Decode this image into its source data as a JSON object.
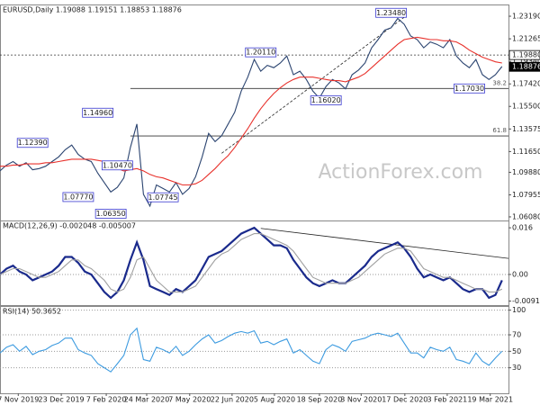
{
  "chart_data": [
    {
      "type": "line",
      "title": "EURUSD,Daily 1.19088 1.19151 1.18853 1.18876",
      "watermark": "ActionForex.com",
      "x": [
        0,
        1,
        2,
        3,
        4,
        5,
        6,
        7,
        8,
        9,
        10,
        11,
        12,
        13,
        14,
        15,
        16,
        17,
        18,
        19,
        20,
        21,
        22,
        23,
        24,
        25,
        26,
        27,
        28,
        29,
        30,
        31,
        32,
        33,
        34,
        35,
        36,
        37,
        38,
        39,
        40,
        41,
        42,
        43,
        44,
        45,
        46,
        47,
        48,
        49,
        50,
        51,
        52,
        53,
        54,
        55,
        56,
        57,
        58,
        59,
        60,
        61,
        62,
        63,
        64,
        65,
        66,
        67,
        68,
        69,
        70,
        71,
        72,
        73,
        74,
        75,
        76,
        77
      ],
      "xlim": [
        0,
        78
      ],
      "xticks": [
        {
          "value": 2.8,
          "label": "7 Nov 2019"
        },
        {
          "value": 9.4,
          "label": "23 Dec 2019"
        },
        {
          "value": 16.3,
          "label": "7 Feb 2020"
        },
        {
          "value": 22.5,
          "label": "24 Mar 2020"
        },
        {
          "value": 29.1,
          "label": "7 May 2020"
        },
        {
          "value": 35.6,
          "label": "22 Jun 2020"
        },
        {
          "value": 42.1,
          "label": "5 Aug 2020"
        },
        {
          "value": 49,
          "label": "18 Sep 2020"
        },
        {
          "value": 55.4,
          "label": "3 Nov 2020"
        },
        {
          "value": 62.1,
          "label": "17 Dec 2020"
        },
        {
          "value": 68.6,
          "label": "3 Feb 2021"
        },
        {
          "value": 75.2,
          "label": "19 Mar 2021"
        }
      ],
      "ylim": [
        1.0577,
        1.2419
      ],
      "yticks": [
        {
          "value": 1.2319,
          "label": "1.23190"
        },
        {
          "value": 1.21265,
          "label": "1.21265"
        },
        {
          "value": 1.1934,
          "label": "1.19340"
        },
        {
          "value": 1.1742,
          "label": "1.17420"
        },
        {
          "value": 1.155,
          "label": "1.15500"
        },
        {
          "value": 1.13575,
          "label": "1.13575"
        },
        {
          "value": 1.1165,
          "label": "1.11650"
        },
        {
          "value": 1.0988,
          "label": "1.09880"
        },
        {
          "value": 1.07955,
          "label": "1.07955"
        },
        {
          "value": 1.0608,
          "label": "1.06080"
        }
      ],
      "series": [
        {
          "color": "#2b4470",
          "values": [
            1.1,
            1.105,
            1.108,
            1.104,
            1.107,
            1.101,
            1.102,
            1.104,
            1.108,
            1.112,
            1.118,
            1.122,
            1.114,
            1.11,
            1.108,
            1.098,
            1.09,
            1.082,
            1.086,
            1.094,
            1.12,
            1.14,
            1.08,
            1.07,
            1.088,
            1.085,
            1.082,
            1.09,
            1.08,
            1.085,
            1.095,
            1.112,
            1.132,
            1.125,
            1.13,
            1.14,
            1.15,
            1.168,
            1.18,
            1.195,
            1.185,
            1.19,
            1.188,
            1.192,
            1.198,
            1.182,
            1.185,
            1.178,
            1.168,
            1.162,
            1.172,
            1.178,
            1.175,
            1.17,
            1.182,
            1.186,
            1.192,
            1.205,
            1.212,
            1.22,
            1.222,
            1.23,
            1.225,
            1.215,
            1.212,
            1.205,
            1.21,
            1.208,
            1.205,
            1.212,
            1.198,
            1.192,
            1.188,
            1.195,
            1.182,
            1.178,
            1.182,
            1.189
          ]
        },
        {
          "color": "#e8322c",
          "values": [
            1.104,
            1.104,
            1.105,
            1.105,
            1.106,
            1.106,
            1.106,
            1.107,
            1.107,
            1.108,
            1.109,
            1.11,
            1.11,
            1.11,
            1.11,
            1.109,
            1.108,
            1.105,
            1.102,
            1.1,
            1.101,
            1.102,
            1.1,
            1.097,
            1.095,
            1.094,
            1.092,
            1.09,
            1.088,
            1.088,
            1.089,
            1.092,
            1.097,
            1.102,
            1.108,
            1.113,
            1.12,
            1.128,
            1.136,
            1.145,
            1.153,
            1.16,
            1.166,
            1.171,
            1.175,
            1.178,
            1.18,
            1.18,
            1.18,
            1.179,
            1.178,
            1.177,
            1.177,
            1.176,
            1.178,
            1.18,
            1.183,
            1.188,
            1.193,
            1.198,
            1.203,
            1.208,
            1.212,
            1.213,
            1.214,
            1.213,
            1.212,
            1.212,
            1.211,
            1.211,
            1.21,
            1.207,
            1.203,
            1.2,
            1.197,
            1.195,
            1.193,
            1.192
          ]
        }
      ],
      "levels": [
        {
          "value": 1.1988,
          "style": "dotted"
        },
        {
          "value": 1.1703,
          "from": 20,
          "label": "38.2"
        },
        {
          "value": 1.1298,
          "from": 20,
          "label": "61.8"
        }
      ],
      "price_markers": [
        {
          "value": 1.1988,
          "label": "1.19880"
        },
        {
          "value": 1.18876,
          "label": "1.18876"
        }
      ],
      "trendline": {
        "x": [
          34,
          62
        ],
        "values": [
          1.115,
          1.231
        ]
      },
      "annotations": [
        {
          "label": "1.23480",
          "x": 60,
          "value": 1.2348
        },
        {
          "label": "1.20110",
          "x": 40,
          "value": 1.2011
        },
        {
          "label": "1.16020",
          "x": 50,
          "value": 1.1602
        },
        {
          "label": "1.17030",
          "x": 72,
          "value": 1.1703
        },
        {
          "label": "1.14960",
          "x": 15,
          "value": 1.1496
        },
        {
          "label": "1.12390",
          "x": 5,
          "value": 1.1239
        },
        {
          "label": "1.10470",
          "x": 18,
          "value": 1.1047
        },
        {
          "label": "1.07770",
          "x": 12,
          "value": 1.0777
        },
        {
          "label": "1.07745",
          "x": 25,
          "value": 1.07745
        },
        {
          "label": "1.06350",
          "x": 17,
          "value": 1.0635
        }
      ]
    },
    {
      "type": "line",
      "title": "MACD(12,26,9) -0.002048 -0.005007",
      "ylim": [
        -0.0105,
        0.0185
      ],
      "yticks": [
        0.016,
        {
          "value": 0,
          "label": "0.00"
        },
        {
          "value": -0.009116,
          "label": "-0.009116"
        }
      ],
      "zero_line": true,
      "series": [
        {
          "color": "#1a2a8c",
          "values": [
            0.0,
            0.002,
            0.003,
            0.001,
            0.0,
            -0.002,
            -0.001,
            0.0,
            0.001,
            0.003,
            0.006,
            0.006,
            0.004,
            0.001,
            0.0,
            -0.003,
            -0.006,
            -0.008,
            -0.006,
            -0.002,
            0.005,
            0.011,
            0.005,
            -0.004,
            -0.005,
            -0.006,
            -0.007,
            -0.005,
            -0.006,
            -0.004,
            -0.002,
            0.002,
            0.006,
            0.007,
            0.008,
            0.01,
            0.012,
            0.014,
            0.015,
            0.016,
            0.014,
            0.012,
            0.01,
            0.01,
            0.009,
            0.005,
            0.002,
            -0.001,
            -0.003,
            -0.004,
            -0.003,
            -0.002,
            -0.003,
            -0.003,
            -0.001,
            0.001,
            0.003,
            0.006,
            0.008,
            0.009,
            0.01,
            0.011,
            0.009,
            0.006,
            0.002,
            -0.001,
            0.0,
            -0.001,
            -0.002,
            -0.001,
            -0.003,
            -0.005,
            -0.006,
            -0.005,
            -0.005,
            -0.008,
            -0.007,
            -0.002
          ]
        },
        {
          "color": "#a0a0a0",
          "values": [
            0.0,
            0.001,
            0.002,
            0.002,
            0.001,
            0.0,
            -0.001,
            -0.001,
            0.0,
            0.001,
            0.003,
            0.005,
            0.005,
            0.003,
            0.002,
            0.0,
            -0.002,
            -0.005,
            -0.006,
            -0.005,
            -0.001,
            0.005,
            0.006,
            0.002,
            -0.002,
            -0.004,
            -0.006,
            -0.006,
            -0.006,
            -0.005,
            -0.004,
            -0.001,
            0.002,
            0.005,
            0.007,
            0.008,
            0.01,
            0.012,
            0.013,
            0.014,
            0.014,
            0.013,
            0.012,
            0.011,
            0.01,
            0.008,
            0.005,
            0.002,
            -0.001,
            -0.002,
            -0.003,
            -0.003,
            -0.003,
            -0.003,
            -0.002,
            -0.001,
            0.001,
            0.003,
            0.005,
            0.007,
            0.008,
            0.009,
            0.009,
            0.008,
            0.005,
            0.002,
            0.001,
            0.0,
            -0.001,
            -0.001,
            -0.002,
            -0.003,
            -0.004,
            -0.005,
            -0.005,
            -0.006,
            -0.006,
            -0.005
          ]
        }
      ],
      "trendline": {
        "x": [
          40,
          78
        ],
        "values": [
          0.0158,
          0.0055
        ]
      }
    },
    {
      "type": "line",
      "title": "RSI(14) 50.3652",
      "ylim": [
        -1,
        105
      ],
      "yticks": [
        100,
        70,
        50,
        30
      ],
      "grid": true,
      "series": [
        {
          "color": "#3d9be0",
          "values": [
            48,
            55,
            58,
            50,
            56,
            46,
            50,
            52,
            57,
            60,
            66,
            66,
            52,
            48,
            45,
            35,
            30,
            25,
            35,
            45,
            70,
            78,
            40,
            38,
            55,
            52,
            48,
            56,
            45,
            50,
            58,
            65,
            70,
            60,
            63,
            68,
            72,
            74,
            72,
            75,
            60,
            62,
            58,
            62,
            65,
            48,
            52,
            45,
            38,
            35,
            52,
            58,
            55,
            50,
            62,
            64,
            66,
            70,
            72,
            70,
            68,
            72,
            60,
            48,
            48,
            42,
            55,
            52,
            50,
            55,
            40,
            38,
            35,
            48,
            38,
            33,
            42,
            50
          ]
        }
      ]
    }
  ]
}
